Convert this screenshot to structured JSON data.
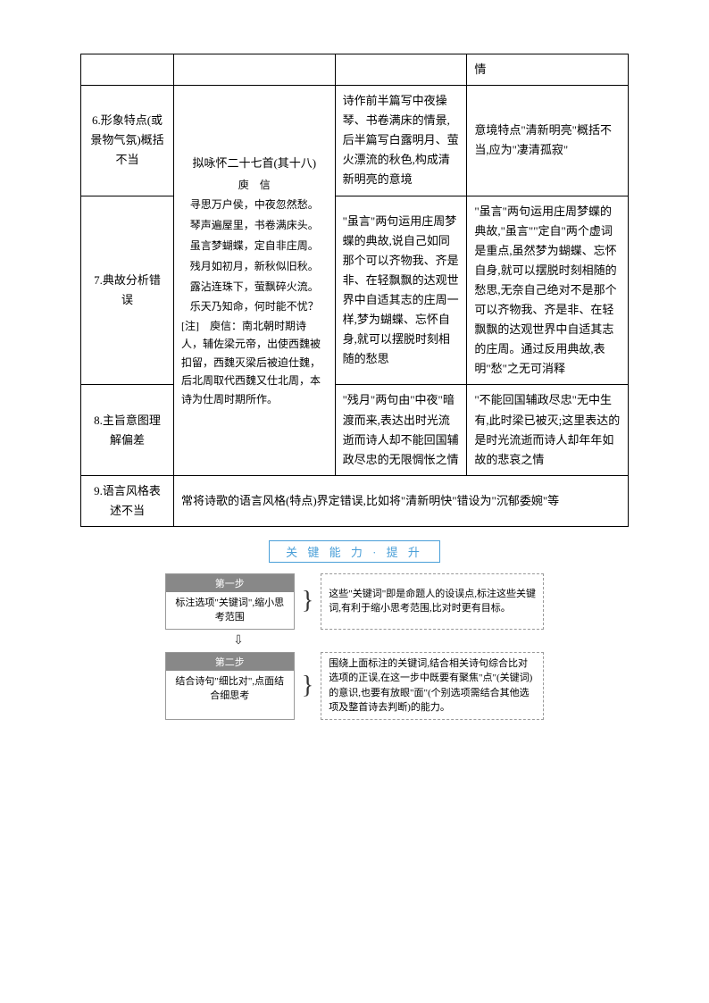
{
  "table": {
    "row0_col4": "情",
    "row1_col1": "6.形象特点(或景物气氛)概括不当",
    "row1_col3": "诗作前半篇写中夜操琴、书卷满床的情景,后半篇写白露明月、萤火漂流的秋色,构成清新明亮的意境",
    "row1_col4": "意境特点\"清新明亮\"概括不当,应为\"凄清孤寂\"",
    "poem_title": "拟咏怀二十七首(其十八)",
    "poem_author": "庾　信",
    "poem_line1": "寻思万户侯，中夜忽然愁。",
    "poem_line2": "琴声遍屋里，书卷满床头。",
    "poem_line3": "虽言梦蝴蝶，定自非庄周。",
    "poem_line4": "残月如初月，新秋似旧秋。",
    "poem_line5": "露沾连珠下，萤飘碎火流。",
    "poem_line6": "乐天乃知命，何时能不忧？",
    "poem_note": "[注]　庾信：南北朝时期诗人，辅佐梁元帝，出使西魏被扣留，西魏灭梁后被迫仕魏，后北周取代西魏又仕北周，本诗为仕周时期所作。",
    "row2_col1": "7.典故分析错误",
    "row2_col3": "\"虽言\"两句运用庄周梦蝶的典故,说自己如同那个可以齐物我、齐是非、在轻飘飘的达观世界中自适其志的庄周一样,梦为蝴蝶、忘怀自身,就可以摆脱时刻相随的愁思",
    "row2_col4": "\"虽言\"两句运用庄周梦蝶的典故,\"虽言\"\"定自\"两个虚词是重点,虽然梦为蝴蝶、忘怀自身,就可以摆脱时刻相随的愁思,无奈自己绝对不是那个可以齐物我、齐是非、在轻飘飘的达观世界中自适其志的庄周。通过反用典故,表明\"愁\"之无可消释",
    "row3_col1": "8.主旨意图理解偏差",
    "row3_col3": "\"残月\"两句由\"中夜\"暗渡而来,表达出时光流逝而诗人却不能回国辅政尽忠的无限惆怅之情",
    "row3_col4": "\"不能回国辅政尽忠\"无中生有,此时梁已被灭;这里表达的是时光流逝而诗人却年年如故的悲哀之情",
    "row4_col1": "9.语言风格表述不当",
    "row4_merged": "常将诗歌的语言风格(特点)界定错误,比如将\"清新明快\"错设为\"沉郁委婉\"等"
  },
  "section_label": "关 键 能 力 · 提 升",
  "steps": {
    "step1_badge": "第一步",
    "step1_left": "标注选项\"关键词\",缩小思考范围",
    "step1_right": "这些\"关键词\"即是命题人的设误点,标注这些关键词,有利于缩小思考范围,比对时更有目标。",
    "step2_badge": "第二步",
    "step2_left": "结合诗句\"细比对\",点面结合细思考",
    "step2_right": "围绕上面标注的关键词,结合相关诗句综合比对选项的正误,在这一步中既要有聚焦\"点\"(关键词)的意识,也要有放眼\"面\"(个别选项需结合其他选项及整首诗去判断)的能力。"
  },
  "colors": {
    "border": "#000000",
    "label_border": "#4a9fd8",
    "label_text": "#4a9fd8",
    "badge_bg": "#888888",
    "dash_border": "#999999"
  }
}
